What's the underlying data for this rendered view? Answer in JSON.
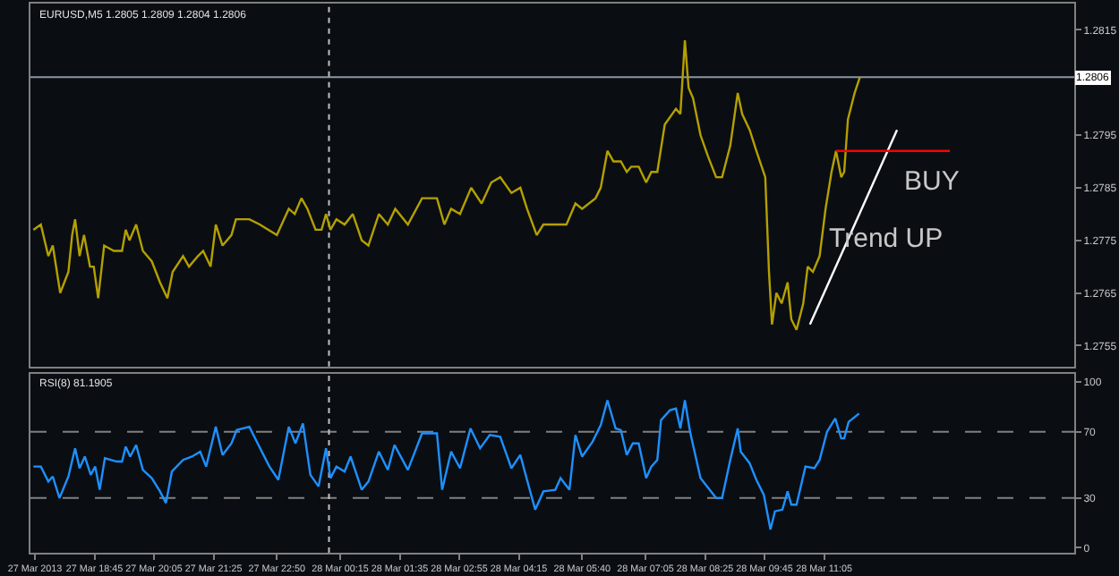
{
  "chart_data": [
    {
      "type": "line",
      "title": "EURUSD,M5 1.2805 1.2809 1.2804 1.2806",
      "xlim": [
        "2013-03-27T17:19",
        "2013-03-28T16:41"
      ],
      "ylim": [
        1.2751,
        1.282
      ],
      "yticks": [
        1.2755,
        1.2765,
        1.2775,
        1.2785,
        1.2795,
        1.2815
      ],
      "tick_labels": "y",
      "grid": false,
      "marker": "none",
      "series": [
        {
          "color": "#b4a000",
          "x": [
            "2013-03-27T17:23",
            "2013-03-27T17:33",
            "2013-03-27T17:43",
            "2013-03-27T17:49",
            "2013-03-27T17:59",
            "2013-03-27T18:10",
            "2013-03-27T18:15",
            "2013-03-27T18:19",
            "2013-03-27T18:25",
            "2013-03-27T18:31",
            "2013-03-27T18:39",
            "2013-03-27T18:44",
            "2013-03-27T18:50",
            "2013-03-27T18:58",
            "2013-03-27T19:11",
            "2013-03-27T19:22",
            "2013-03-27T19:27",
            "2013-03-27T19:32",
            "2013-03-27T19:41",
            "2013-03-27T19:50",
            "2013-03-27T20:02",
            "2013-03-27T20:13",
            "2013-03-27T20:23",
            "2013-03-27T20:30",
            "2013-03-27T20:44",
            "2013-03-27T20:52",
            "2013-03-27T21:04",
            "2013-03-27T21:11",
            "2013-03-27T21:21",
            "2013-03-27T21:28",
            "2013-03-27T21:37",
            "2013-03-27T21:49",
            "2013-03-27T21:55",
            "2013-03-27T22:13",
            "2013-03-27T22:27",
            "2013-03-27T22:50",
            "2013-03-27T23:06",
            "2013-03-27T23:14",
            "2013-03-27T23:23",
            "2013-03-27T23:31",
            "2013-03-27T23:42",
            "2013-03-27T23:50",
            "2013-03-27T23:56",
            "2013-03-28T00:02",
            "2013-03-28T00:10",
            "2013-03-28T00:21",
            "2013-03-28T00:32",
            "2013-03-28T00:44",
            "2013-03-28T00:53",
            "2013-03-28T01:07",
            "2013-03-28T01:19",
            "2013-03-28T01:29",
            "2013-03-28T01:46",
            "2013-03-28T02:05",
            "2013-03-28T02:25",
            "2013-03-28T02:35",
            "2013-03-28T02:44",
            "2013-03-28T02:56",
            "2013-03-28T03:11",
            "2013-03-28T03:25",
            "2013-03-28T03:38",
            "2013-03-28T03:50",
            "2013-03-28T04:05",
            "2013-03-28T04:17",
            "2013-03-28T04:26",
            "2013-03-28T04:39",
            "2013-03-28T04:48",
            "2013-03-28T05:04",
            "2013-03-28T05:19",
            "2013-03-28T05:31",
            "2013-03-28T05:40",
            "2013-03-28T05:58",
            "2013-03-28T06:05",
            "2013-03-28T06:14",
            "2013-03-28T06:22",
            "2013-03-28T06:32",
            "2013-03-28T06:40",
            "2013-03-28T06:46",
            "2013-03-28T06:56",
            "2013-03-28T07:06",
            "2013-03-28T07:13",
            "2013-03-28T07:21",
            "2013-03-28T07:31",
            "2013-03-28T07:46",
            "2013-03-28T07:52",
            "2013-03-28T07:58",
            "2013-03-28T08:03",
            "2013-03-28T08:09",
            "2013-03-28T08:19",
            "2013-03-28T08:29",
            "2013-03-28T08:40",
            "2013-03-28T08:48",
            "2013-03-28T08:59",
            "2013-03-28T09:09",
            "2013-03-28T09:15",
            "2013-03-28T09:25",
            "2013-03-28T09:34",
            "2013-03-28T09:46",
            "2013-03-28T09:51",
            "2013-03-28T09:55",
            "2013-03-28T10:01",
            "2013-03-28T10:08",
            "2013-03-28T10:16",
            "2013-03-28T10:21",
            "2013-03-28T10:28",
            "2013-03-28T10:37",
            "2013-03-28T10:43",
            "2013-03-28T10:50",
            "2013-03-28T10:59",
            "2013-03-28T11:07",
            "2013-03-28T11:15",
            "2013-03-28T11:21",
            "2013-03-28T11:28",
            "2013-03-28T11:32",
            "2013-03-28T11:37",
            "2013-03-28T11:46",
            "2013-03-28T11:53"
          ],
          "values": [
            1.2777,
            1.2778,
            1.2772,
            1.2774,
            1.2765,
            1.2769,
            1.2776,
            1.2779,
            1.2772,
            1.2776,
            1.277,
            1.277,
            1.2764,
            1.2774,
            1.2773,
            1.2773,
            1.2777,
            1.2775,
            1.2778,
            1.2773,
            1.2771,
            1.2767,
            1.2764,
            1.2769,
            1.2772,
            1.277,
            1.2772,
            1.2773,
            1.277,
            1.2778,
            1.2774,
            1.2776,
            1.2779,
            1.2779,
            1.2778,
            1.2776,
            1.2781,
            1.278,
            1.2783,
            1.2781,
            1.2777,
            1.2777,
            1.278,
            1.2777,
            1.2779,
            1.2778,
            1.278,
            1.2775,
            1.2774,
            1.278,
            1.2778,
            1.2781,
            1.2778,
            1.2783,
            1.2783,
            1.2778,
            1.2781,
            1.278,
            1.2785,
            1.2782,
            1.2786,
            1.2787,
            1.2784,
            1.2785,
            1.2781,
            1.2776,
            1.2778,
            1.2778,
            1.2778,
            1.2782,
            1.2781,
            1.2783,
            1.2785,
            1.2792,
            1.279,
            1.279,
            1.2788,
            1.2789,
            1.2789,
            1.2786,
            1.2788,
            1.2788,
            1.2797,
            1.28,
            1.2799,
            1.2813,
            1.2804,
            1.2802,
            1.2795,
            1.2791,
            1.2787,
            1.2787,
            1.2793,
            1.2803,
            1.2799,
            1.2796,
            1.2792,
            1.2787,
            1.2769,
            1.2759,
            1.2765,
            1.2763,
            1.2767,
            1.276,
            1.2758,
            1.2763,
            1.277,
            1.2769,
            1.2772,
            1.2781,
            1.2788,
            1.2792,
            1.2787,
            1.2788,
            1.2798,
            1.2803,
            1.2806
          ]
        },
        {
          "color": "#ffffff",
          "x": [
            "2013-03-28T10:46",
            "2013-03-28T12:43"
          ],
          "values": [
            1.2759,
            1.2796
          ]
        },
        {
          "color": "#ff0000",
          "x": [
            "2013-03-28T11:21",
            "2013-03-28T13:54"
          ],
          "values": [
            1.2792,
            1.2792
          ]
        }
      ],
      "ref_lines": [
        {
          "axis": "y",
          "value": 1.2806,
          "label": "1.2806",
          "color": "#8c96a0",
          "line_style": "solid"
        },
        {
          "axis": "x",
          "value": "2013-03-28T00:00",
          "color": "#c0c0c0",
          "line_style": "dotted"
        }
      ],
      "annotations": [
        "BUY",
        "Trend UP"
      ]
    },
    {
      "type": "line",
      "title": "RSI(8) 81.1905",
      "xlim": [
        "2013-03-27T17:19",
        "2013-03-28T16:41"
      ],
      "xticks": [
        {
          "value": "2013-03-27T17:25",
          "label": "27 Mar 2013"
        },
        {
          "value": "2013-03-27T18:45",
          "label": "27 Mar 18:45"
        },
        {
          "value": "2013-03-27T20:05",
          "label": "27 Mar 20:05"
        },
        {
          "value": "2013-03-27T21:25",
          "label": "27 Mar 21:25"
        },
        {
          "value": "2013-03-27T22:50",
          "label": "27 Mar 22:50"
        },
        {
          "value": "2013-03-28T00:15",
          "label": "28 Mar 00:15"
        },
        {
          "value": "2013-03-28T01:35",
          "label": "28 Mar 01:35"
        },
        {
          "value": "2013-03-28T02:55",
          "label": "28 Mar 02:55"
        },
        {
          "value": "2013-03-28T04:15",
          "label": "28 Mar 04:15"
        },
        {
          "value": "2013-03-28T05:40",
          "label": "28 Mar 05:40"
        },
        {
          "value": "2013-03-28T07:05",
          "label": "28 Mar 07:05"
        },
        {
          "value": "2013-03-28T08:25",
          "label": "28 Mar 08:25"
        },
        {
          "value": "2013-03-28T09:45",
          "label": "28 Mar 09:45"
        },
        {
          "value": "2013-03-28T11:05",
          "label": "28 Mar 11:05"
        }
      ],
      "ylim": [
        -3,
        105
      ],
      "yticks": [
        0,
        30,
        70,
        100
      ],
      "grid": false,
      "marker": "none",
      "series": [
        {
          "color": "#1e90ff",
          "x": [
            "2013-03-27T17:23",
            "2013-03-27T17:33",
            "2013-03-27T17:43",
            "2013-03-27T17:49",
            "2013-03-27T17:58",
            "2013-03-27T18:10",
            "2013-03-27T18:19",
            "2013-03-27T18:25",
            "2013-03-27T18:32",
            "2013-03-27T18:40",
            "2013-03-27T18:46",
            "2013-03-27T18:52",
            "2013-03-27T18:59",
            "2013-03-27T19:15",
            "2013-03-27T19:22",
            "2013-03-27T19:27",
            "2013-03-27T19:33",
            "2013-03-27T19:41",
            "2013-03-27T19:50",
            "2013-03-27T20:02",
            "2013-03-27T20:13",
            "2013-03-27T20:21",
            "2013-03-27T20:29",
            "2013-03-27T20:44",
            "2013-03-27T20:56",
            "2013-03-27T21:07",
            "2013-03-27T21:15",
            "2013-03-27T21:28",
            "2013-03-27T21:37",
            "2013-03-27T21:49",
            "2013-03-27T21:56",
            "2013-03-27T22:13",
            "2013-03-27T22:23",
            "2013-03-27T22:40",
            "2013-03-27T22:52",
            "2013-03-27T23:06",
            "2013-03-27T23:15",
            "2013-03-27T23:25",
            "2013-03-27T23:35",
            "2013-03-27T23:46",
            "2013-03-27T23:56",
            "2013-03-28T00:02",
            "2013-03-28T00:10",
            "2013-03-28T00:21",
            "2013-03-28T00:29",
            "2013-03-28T00:44",
            "2013-03-28T00:53",
            "2013-03-28T01:07",
            "2013-03-28T01:19",
            "2013-03-28T01:28",
            "2013-03-28T01:46",
            "2013-03-28T02:05",
            "2013-03-28T02:25",
            "2013-03-28T02:32",
            "2013-03-28T02:44",
            "2013-03-28T02:56",
            "2013-03-28T03:10",
            "2013-03-28T03:23",
            "2013-03-28T03:36",
            "2013-03-28T03:50",
            "2013-03-28T04:05",
            "2013-03-28T04:17",
            "2013-03-28T04:26",
            "2013-03-28T04:37",
            "2013-03-28T04:48",
            "2013-03-28T05:04",
            "2013-03-28T05:11",
            "2013-03-28T05:23",
            "2013-03-28T05:31",
            "2013-03-28T05:40",
            "2013-03-28T05:54",
            "2013-03-28T06:05",
            "2013-03-28T06:14",
            "2013-03-28T06:25",
            "2013-03-28T06:32",
            "2013-03-28T06:40",
            "2013-03-28T06:48",
            "2013-03-28T06:56",
            "2013-03-28T07:06",
            "2013-03-28T07:13",
            "2013-03-28T07:21",
            "2013-03-28T07:26",
            "2013-03-28T07:38",
            "2013-03-28T07:46",
            "2013-03-28T07:52",
            "2013-03-28T07:58",
            "2013-03-28T08:05",
            "2013-03-28T08:19",
            "2013-03-28T08:40",
            "2013-03-28T08:48",
            "2013-03-28T08:59",
            "2013-03-28T09:09",
            "2013-03-28T09:13",
            "2013-03-28T09:25",
            "2013-03-28T09:34",
            "2013-03-28T09:44",
            "2013-03-28T09:53",
            "2013-03-28T09:59",
            "2013-03-28T10:09",
            "2013-03-28T10:16",
            "2013-03-28T10:21",
            "2013-03-28T10:28",
            "2013-03-28T10:40",
            "2013-03-28T10:52",
            "2013-03-28T10:59",
            "2013-03-28T11:09",
            "2013-03-28T11:20",
            "2013-03-28T11:28",
            "2013-03-28T11:32",
            "2013-03-28T11:38",
            "2013-03-28T11:52"
          ],
          "values": [
            49,
            49,
            40,
            43,
            30,
            43,
            60,
            48,
            55,
            44,
            49,
            35,
            54,
            52,
            52,
            61,
            55,
            62,
            47,
            42,
            34,
            27,
            46,
            53,
            55,
            58,
            49,
            73,
            56,
            63,
            71,
            73,
            64,
            49,
            41,
            73,
            63,
            75,
            44,
            37,
            60,
            42,
            49,
            46,
            55,
            35,
            40,
            58,
            47,
            62,
            47,
            69,
            69,
            35,
            58,
            48,
            72,
            60,
            68,
            67,
            48,
            56,
            41,
            23,
            34,
            35,
            42,
            35,
            68,
            55,
            64,
            74,
            89,
            72,
            71,
            56,
            63,
            63,
            42,
            49,
            53,
            77,
            83,
            84,
            72,
            89,
            70,
            42,
            30,
            30,
            53,
            72,
            58,
            51,
            41,
            32,
            11,
            22,
            23,
            34,
            26,
            26,
            49,
            48,
            53,
            70,
            78,
            66,
            66,
            76,
            81
          ]
        }
      ],
      "ref_lines": [
        {
          "axis": "y",
          "value": 70,
          "color": "#808080",
          "line_style": "dashed"
        },
        {
          "axis": "y",
          "value": 30,
          "color": "#808080",
          "line_style": "dashed"
        },
        {
          "axis": "x",
          "value": "2013-03-28T00:00",
          "color": "#c0c0c0",
          "line_style": "dotted"
        }
      ]
    }
  ]
}
